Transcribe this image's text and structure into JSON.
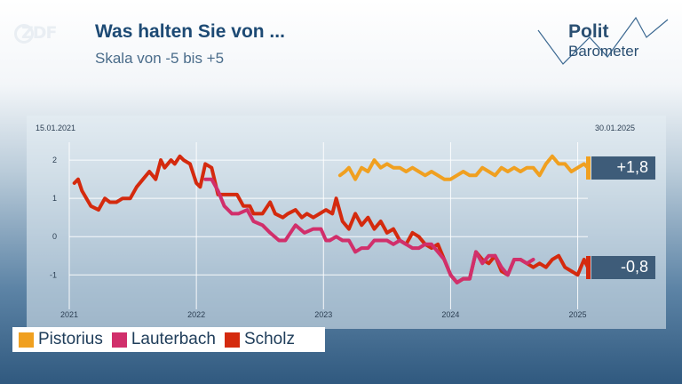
{
  "header": {
    "title": "Was halten Sie von ...",
    "subtitle": "Skala von -5 bis +5",
    "broadcaster_logo": "ZDF",
    "brand_logo": {
      "line1": "Polit",
      "line2": "Barometer"
    }
  },
  "chart_data": {
    "type": "line",
    "title": "Was halten Sie von ...",
    "subtitle": "Skala von -5 bis +5",
    "date_range": {
      "start": "15.01.2021",
      "end": "30.01.2025"
    },
    "xlim": [
      2021.0,
      2025.08
    ],
    "ylim": [
      -1.9,
      2.7
    ],
    "x_ticks": [
      "2021",
      "2022",
      "2023",
      "2024",
      "2025"
    ],
    "y_ticks": [
      {
        "value": 2,
        "label": "2"
      },
      {
        "value": 1,
        "label": "1"
      },
      {
        "value": 0,
        "label": "0"
      },
      {
        "value": -1,
        "label": "-1"
      }
    ],
    "grid": true,
    "legend_position": "bottom-left",
    "series": [
      {
        "name": "Scholz",
        "color": "#d42a0e",
        "last_label": "-0,8",
        "last_value": -0.8,
        "x": [
          2021.04,
          2021.07,
          2021.1,
          2021.17,
          2021.23,
          2021.28,
          2021.32,
          2021.37,
          2021.42,
          2021.48,
          2021.53,
          2021.58,
          2021.63,
          2021.68,
          2021.72,
          2021.75,
          2021.8,
          2021.83,
          2021.87,
          2021.9,
          2021.95,
          2022.0,
          2022.03,
          2022.07,
          2022.12,
          2022.17,
          2022.2,
          2022.25,
          2022.32,
          2022.37,
          2022.42,
          2022.45,
          2022.52,
          2022.58,
          2022.62,
          2022.68,
          2022.72,
          2022.78,
          2022.83,
          2022.87,
          2022.92,
          2022.97,
          2023.02,
          2023.07,
          2023.1,
          2023.15,
          2023.2,
          2023.25,
          2023.3,
          2023.35,
          2023.4,
          2023.45,
          2023.5,
          2023.55,
          2023.6,
          2023.65,
          2023.7,
          2023.75,
          2023.8,
          2023.85,
          2023.9,
          2023.95,
          2024.0,
          2024.05,
          2024.1,
          2024.15,
          2024.2,
          2024.25,
          2024.3,
          2024.35,
          2024.4,
          2024.45,
          2024.5,
          2024.55,
          2024.6,
          2024.65,
          2024.7,
          2024.75,
          2024.8,
          2024.85,
          2024.9,
          2024.95,
          2025.0,
          2025.05,
          2025.08
        ],
        "y": [
          1.4,
          1.5,
          1.2,
          0.8,
          0.7,
          1.0,
          0.9,
          0.9,
          1.0,
          1.0,
          1.3,
          1.5,
          1.7,
          1.5,
          2.0,
          1.8,
          2.0,
          1.9,
          2.1,
          2.0,
          1.9,
          1.4,
          1.3,
          1.9,
          1.8,
          1.1,
          1.1,
          1.1,
          1.1,
          0.8,
          0.8,
          0.6,
          0.6,
          0.9,
          0.6,
          0.5,
          0.6,
          0.7,
          0.5,
          0.6,
          0.5,
          0.6,
          0.7,
          0.6,
          1.0,
          0.4,
          0.2,
          0.6,
          0.3,
          0.5,
          0.2,
          0.4,
          0.1,
          0.2,
          -0.1,
          -0.2,
          0.1,
          0.0,
          -0.2,
          -0.3,
          -0.2,
          -0.6,
          -1.0,
          -1.2,
          -1.1,
          -1.1,
          -0.4,
          -0.6,
          -0.7,
          -0.5,
          -0.9,
          -1.0,
          -0.6,
          -0.6,
          -0.7,
          -0.8,
          -0.7,
          -0.8,
          -0.6,
          -0.5,
          -0.8,
          -0.9,
          -1.0,
          -0.6,
          -0.8
        ]
      },
      {
        "name": "Lauterbach",
        "color": "#d12f6b",
        "x": [
          2022.07,
          2022.12,
          2022.17,
          2022.22,
          2022.28,
          2022.33,
          2022.4,
          2022.45,
          2022.52,
          2022.58,
          2022.65,
          2022.7,
          2022.78,
          2022.85,
          2022.92,
          2022.98,
          2023.02,
          2023.05,
          2023.1,
          2023.15,
          2023.2,
          2023.25,
          2023.3,
          2023.35,
          2023.4,
          2023.45,
          2023.5,
          2023.55,
          2023.6,
          2023.65,
          2023.7,
          2023.75,
          2023.8,
          2023.85,
          2023.9,
          2023.95,
          2024.0,
          2024.05,
          2024.1,
          2024.15,
          2024.2,
          2024.25,
          2024.3,
          2024.35,
          2024.4,
          2024.45,
          2024.5,
          2024.55,
          2024.6,
          2024.65
        ],
        "y": [
          1.5,
          1.5,
          1.2,
          0.8,
          0.6,
          0.6,
          0.7,
          0.4,
          0.3,
          0.1,
          -0.1,
          -0.1,
          0.3,
          0.1,
          0.2,
          0.2,
          -0.1,
          -0.1,
          0.0,
          -0.1,
          -0.1,
          -0.4,
          -0.3,
          -0.3,
          -0.1,
          -0.1,
          -0.1,
          -0.2,
          -0.1,
          -0.2,
          -0.3,
          -0.3,
          -0.2,
          -0.2,
          -0.4,
          -0.6,
          -1.0,
          -1.2,
          -1.1,
          -1.1,
          -0.4,
          -0.7,
          -0.5,
          -0.5,
          -0.8,
          -1.0,
          -0.6,
          -0.6,
          -0.7,
          -0.6
        ]
      },
      {
        "name": "Pistorius",
        "color": "#f0a020",
        "last_label": "+1,8",
        "last_value": 1.8,
        "x": [
          2023.13,
          2023.17,
          2023.2,
          2023.25,
          2023.3,
          2023.35,
          2023.4,
          2023.45,
          2023.5,
          2023.55,
          2023.6,
          2023.65,
          2023.7,
          2023.75,
          2023.8,
          2023.85,
          2023.9,
          2023.95,
          2024.0,
          2024.05,
          2024.1,
          2024.15,
          2024.2,
          2024.25,
          2024.3,
          2024.35,
          2024.4,
          2024.45,
          2024.5,
          2024.55,
          2024.6,
          2024.65,
          2024.7,
          2024.75,
          2024.8,
          2024.85,
          2024.9,
          2024.95,
          2025.0,
          2025.05,
          2025.08
        ],
        "y": [
          1.6,
          1.7,
          1.8,
          1.5,
          1.8,
          1.7,
          2.0,
          1.8,
          1.9,
          1.8,
          1.8,
          1.7,
          1.8,
          1.7,
          1.6,
          1.7,
          1.6,
          1.5,
          1.5,
          1.6,
          1.7,
          1.6,
          1.6,
          1.8,
          1.7,
          1.6,
          1.8,
          1.7,
          1.8,
          1.7,
          1.8,
          1.8,
          1.6,
          1.9,
          2.1,
          1.9,
          1.9,
          1.7,
          1.8,
          1.9,
          1.8
        ]
      }
    ]
  },
  "legend": [
    {
      "label": "Pistorius",
      "color": "#f0a020"
    },
    {
      "label": "Lauterbach",
      "color": "#d12f6b"
    },
    {
      "label": "Scholz",
      "color": "#d42a0e"
    }
  ],
  "callouts": [
    {
      "series": "Pistorius",
      "label": "+1,8",
      "color": "#f0a020",
      "value": 1.8
    },
    {
      "series": "Scholz",
      "label": "-0,8",
      "color": "#d42a0e",
      "value": -0.8
    }
  ]
}
